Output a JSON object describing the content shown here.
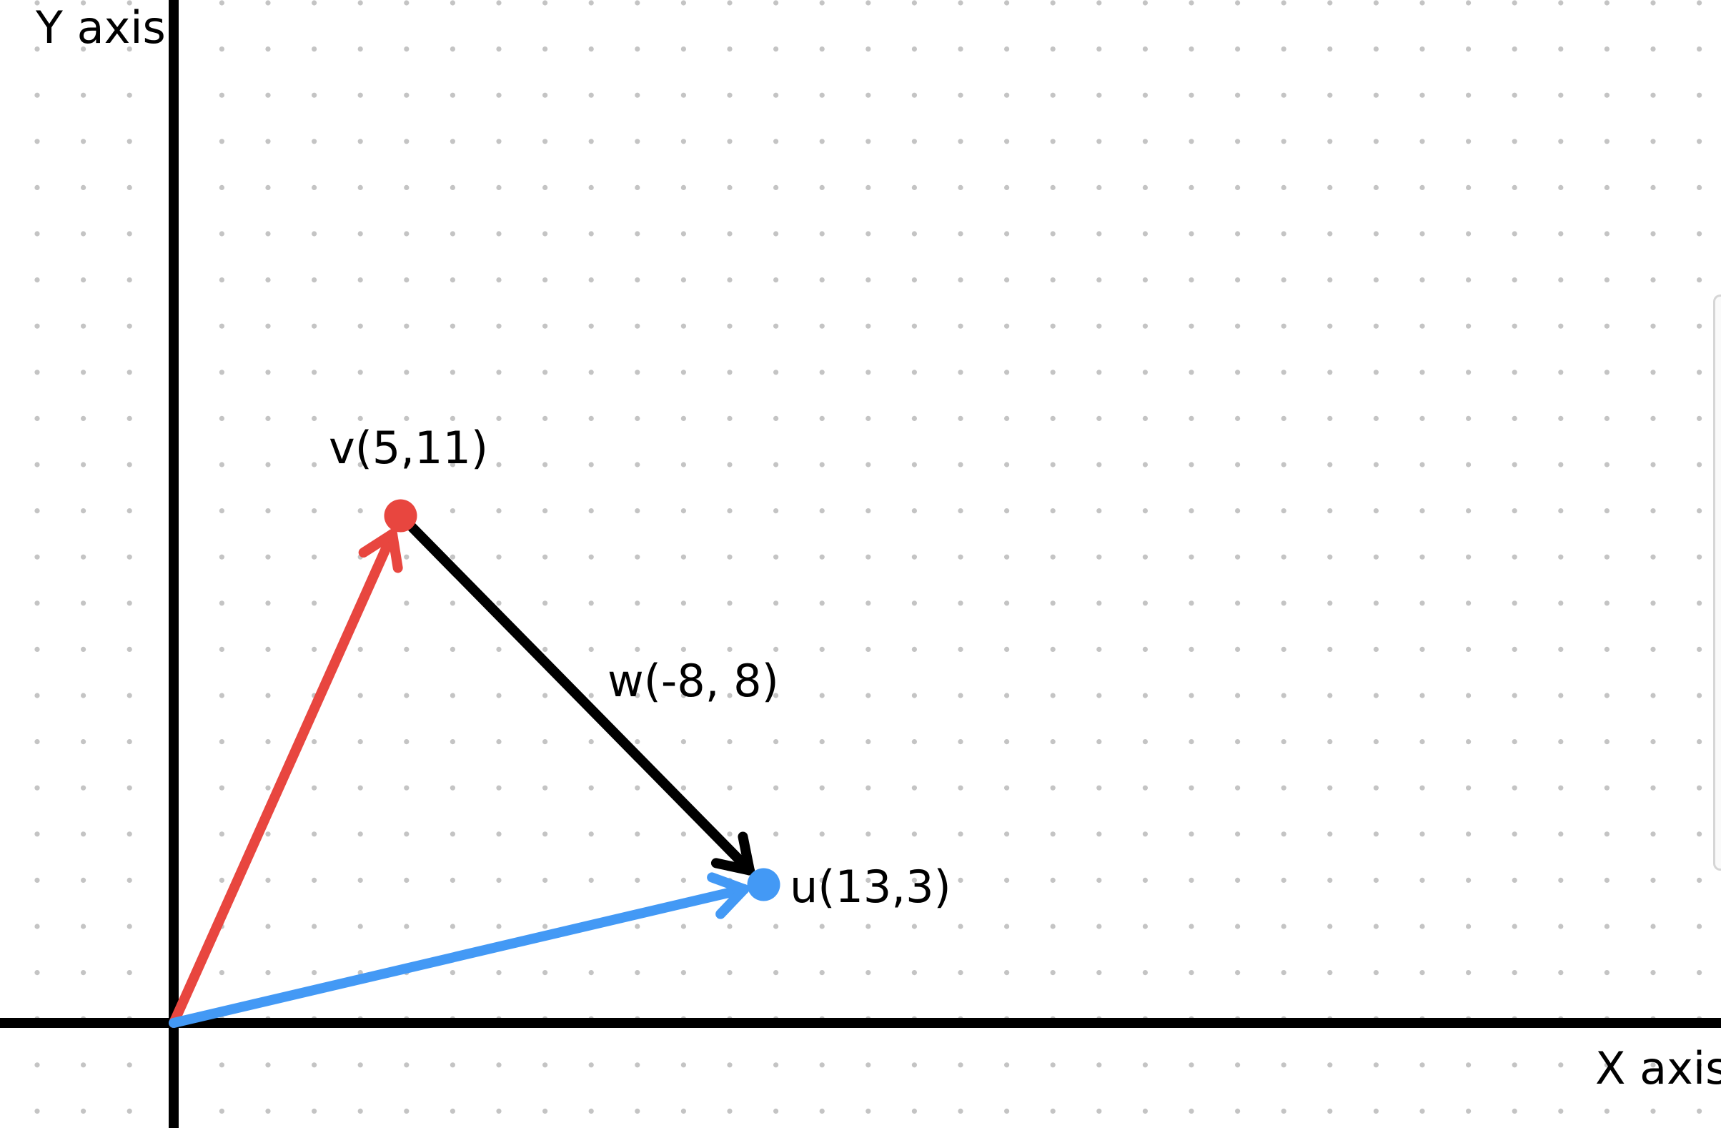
{
  "axes": {
    "x_label": "X axis",
    "y_label": "Y axis"
  },
  "points": {
    "v": {
      "label": "v(5,11)",
      "x": 5,
      "y": 11
    },
    "u": {
      "label": "u(13,3)",
      "x": 13,
      "y": 3
    }
  },
  "vectors": {
    "w": {
      "label": "w(-8, 8)"
    }
  },
  "colors": {
    "v_vector": "#e8463f",
    "u_vector": "#4399f5",
    "w_vector": "#000000",
    "axis": "#000000",
    "grid_dot": "#c4c4c4"
  }
}
